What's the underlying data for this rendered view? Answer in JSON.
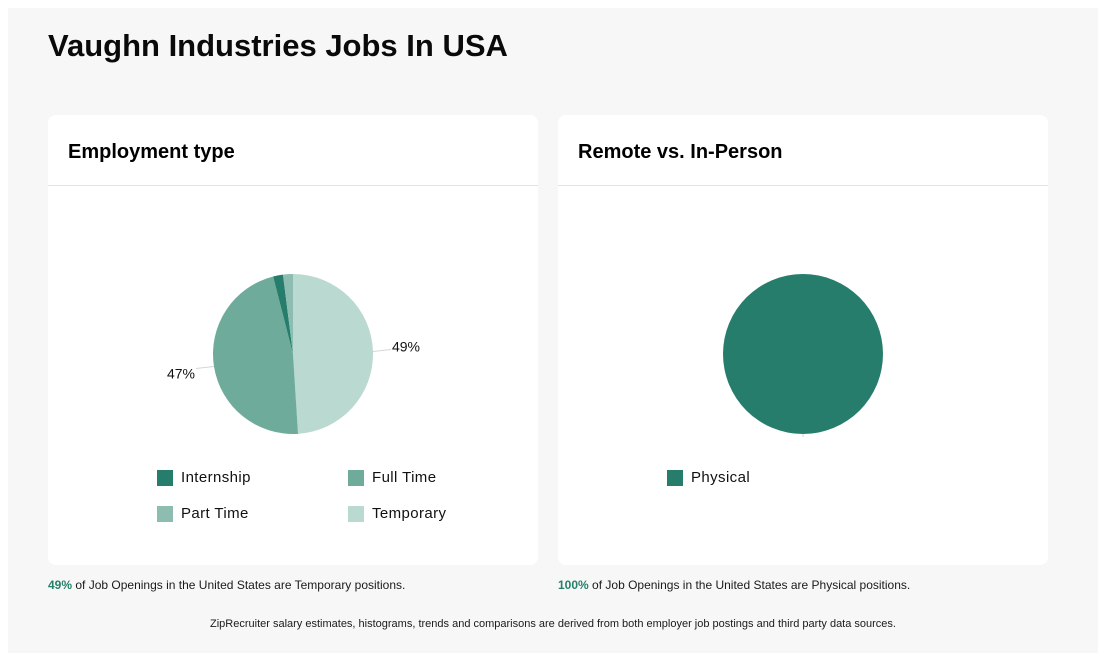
{
  "page": {
    "title": "Vaughn Industries Jobs In USA"
  },
  "colors": {
    "internship": "#267d6c",
    "full_time": "#6fab9b",
    "part_time": "#8dbdb0",
    "temporary": "#bad9d0",
    "physical": "#267d6c",
    "accent": "#26806b"
  },
  "employment_card": {
    "title": "Employment type",
    "legend": [
      "Internship",
      "Full Time",
      "Part Time",
      "Temporary"
    ],
    "caption": {
      "pct": "49%",
      "text": "of Job Openings in the United States are Temporary positions."
    }
  },
  "remote_card": {
    "title": "Remote vs. In-Person",
    "legend": [
      "Physical"
    ],
    "caption": {
      "pct": "100%",
      "text": "of Job Openings in the United States are Physical positions."
    }
  },
  "footer": "ZipRecruiter salary estimates, histograms, trends and comparisons are derived from both employer job postings and third party data sources.",
  "chart_data": [
    {
      "type": "pie",
      "title": "Employment type",
      "slices": [
        {
          "label": "Temporary",
          "value": 49,
          "data_label": "49%"
        },
        {
          "label": "Full Time",
          "value": 47,
          "data_label": "47%"
        },
        {
          "label": "Internship",
          "value": 2
        },
        {
          "label": "Part Time",
          "value": 2
        }
      ],
      "legend_position": "bottom"
    },
    {
      "type": "pie",
      "title": "Remote vs. In-Person",
      "slices": [
        {
          "label": "Physical",
          "value": 100,
          "data_label": "100%"
        }
      ],
      "legend_position": "bottom"
    }
  ]
}
